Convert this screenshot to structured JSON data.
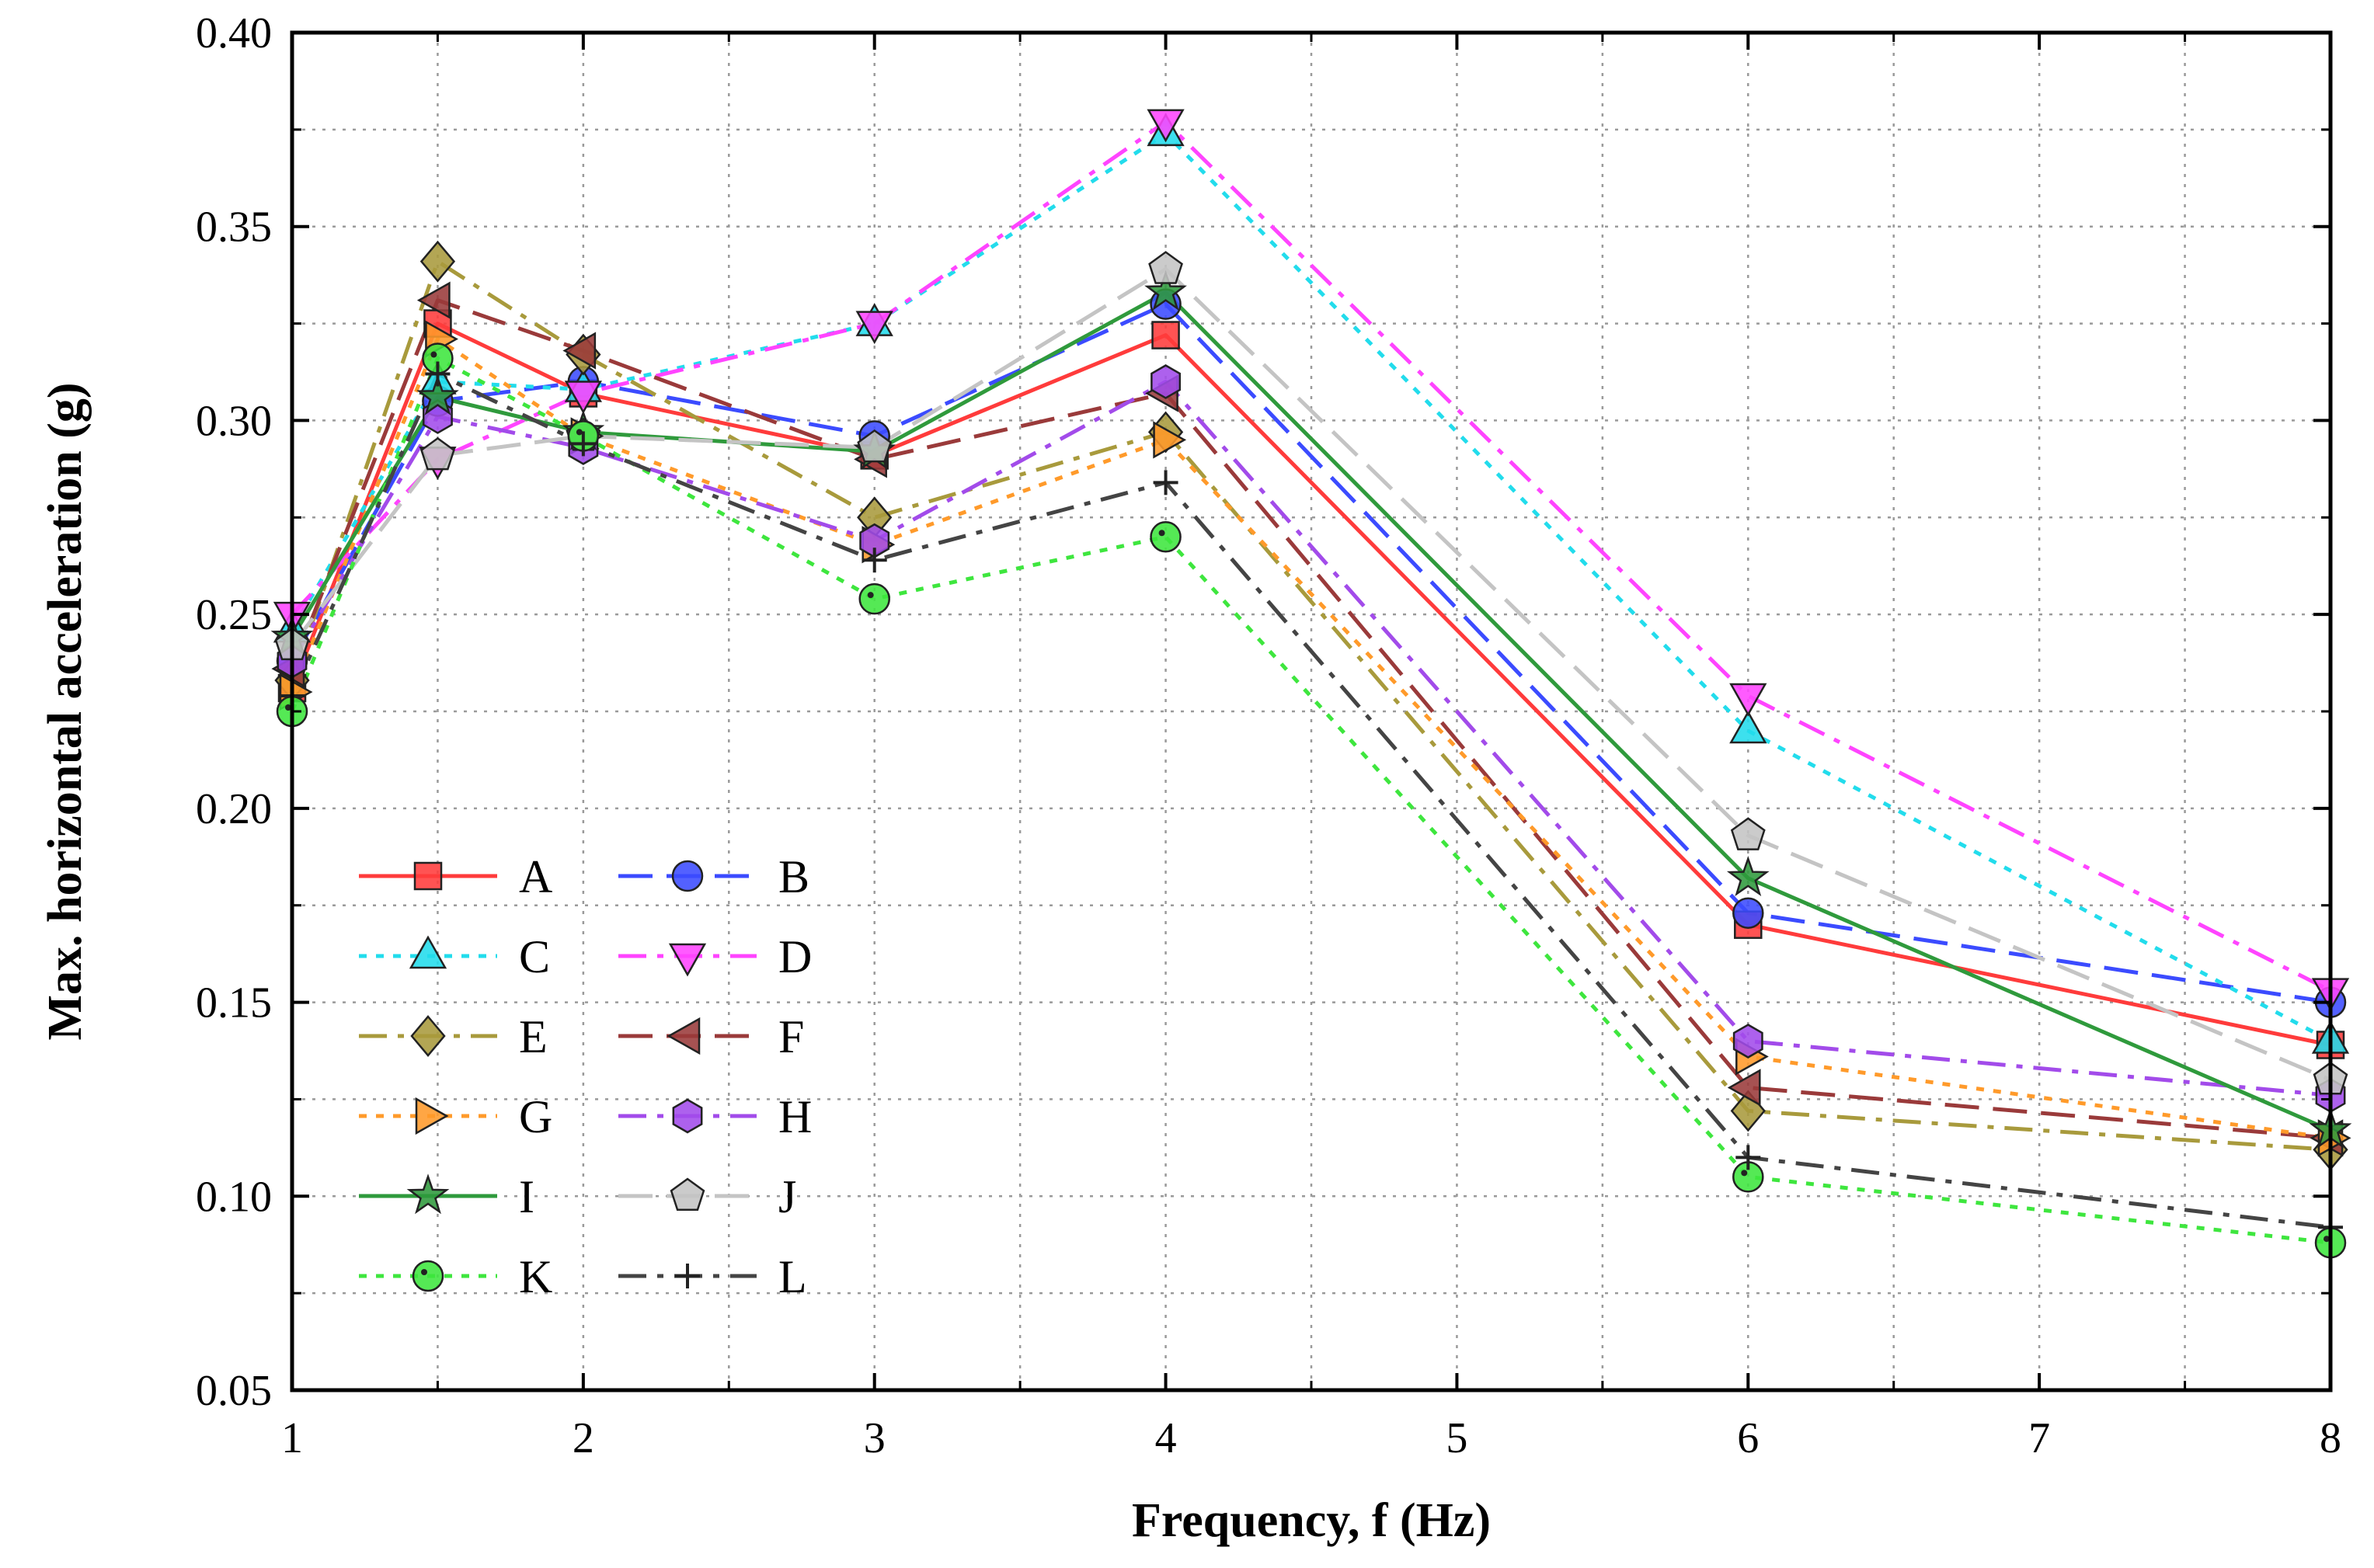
{
  "chart_data": {
    "type": "line",
    "title": "",
    "xlabel": "Frequency, f (Hz)",
    "ylabel": "Max. horizontal acceleration (g)",
    "xlim": [
      1,
      8
    ],
    "ylim": [
      0.05,
      0.4
    ],
    "xticks": [
      1,
      2,
      3,
      4,
      5,
      6,
      7,
      8
    ],
    "xtick_labels": [
      "1",
      "2",
      "3",
      "4",
      "5",
      "6",
      "7",
      "8"
    ],
    "yticks": [
      0.05,
      0.1,
      0.15,
      0.2,
      0.25,
      0.3,
      0.35,
      0.4
    ],
    "ytick_labels": [
      "0.05",
      "0.10",
      "0.15",
      "0.20",
      "0.25",
      "0.30",
      "0.35",
      "0.40"
    ],
    "grid": true,
    "legend_position": "lower-left",
    "x": [
      1,
      1.5,
      2,
      3,
      4,
      6,
      8
    ],
    "series": [
      {
        "name": "A",
        "values": [
          0.231,
          0.325,
          0.307,
          0.291,
          0.322,
          0.17,
          0.139
        ],
        "color": "#ff3b3b",
        "dash": "solid",
        "marker": "square"
      },
      {
        "name": "B",
        "values": [
          0.238,
          0.305,
          0.31,
          0.296,
          0.33,
          0.173,
          0.15
        ],
        "color": "#3b4bff",
        "dash": "dash",
        "marker": "circle"
      },
      {
        "name": "C",
        "values": [
          0.246,
          0.31,
          0.308,
          0.325,
          0.374,
          0.22,
          0.14
        ],
        "color": "#22dcec",
        "dash": "dot",
        "marker": "triangle-up"
      },
      {
        "name": "D",
        "values": [
          0.25,
          0.29,
          0.307,
          0.325,
          0.377,
          0.229,
          0.153
        ],
        "color": "#ff44ff",
        "dash": "dashdot",
        "marker": "triangle-down"
      },
      {
        "name": "E",
        "values": [
          0.233,
          0.341,
          0.317,
          0.275,
          0.297,
          0.122,
          0.112
        ],
        "color": "#a89a3c",
        "dash": "dashdot",
        "marker": "diamond"
      },
      {
        "name": "F",
        "values": [
          0.236,
          0.331,
          0.318,
          0.29,
          0.307,
          0.128,
          0.115
        ],
        "color": "#9a3a3a",
        "dash": "dash",
        "marker": "triangle-left"
      },
      {
        "name": "G",
        "values": [
          0.23,
          0.321,
          0.296,
          0.268,
          0.295,
          0.136,
          0.115
        ],
        "color": "#ff9a2a",
        "dash": "dot",
        "marker": "triangle-right"
      },
      {
        "name": "H",
        "values": [
          0.238,
          0.301,
          0.293,
          0.269,
          0.31,
          0.14,
          0.126
        ],
        "color": "#a24bea",
        "dash": "dashdot",
        "marker": "hexagon"
      },
      {
        "name": "I",
        "values": [
          0.244,
          0.306,
          0.297,
          0.292,
          0.333,
          0.182,
          0.117
        ],
        "color": "#2f9a3c",
        "dash": "solid",
        "marker": "star"
      },
      {
        "name": "J",
        "values": [
          0.242,
          0.291,
          0.296,
          0.293,
          0.339,
          0.193,
          0.13
        ],
        "color": "#c4c4c4",
        "dash": "dash",
        "marker": "pentagon"
      },
      {
        "name": "K",
        "values": [
          0.225,
          0.316,
          0.296,
          0.254,
          0.27,
          0.105,
          0.088
        ],
        "color": "#3ee63e",
        "dash": "dot",
        "marker": "circle-dot"
      },
      {
        "name": "L",
        "values": [
          0.229,
          0.312,
          0.294,
          0.264,
          0.284,
          0.11,
          0.092
        ],
        "color": "#444444",
        "dash": "dashdot",
        "marker": "plus"
      }
    ]
  }
}
